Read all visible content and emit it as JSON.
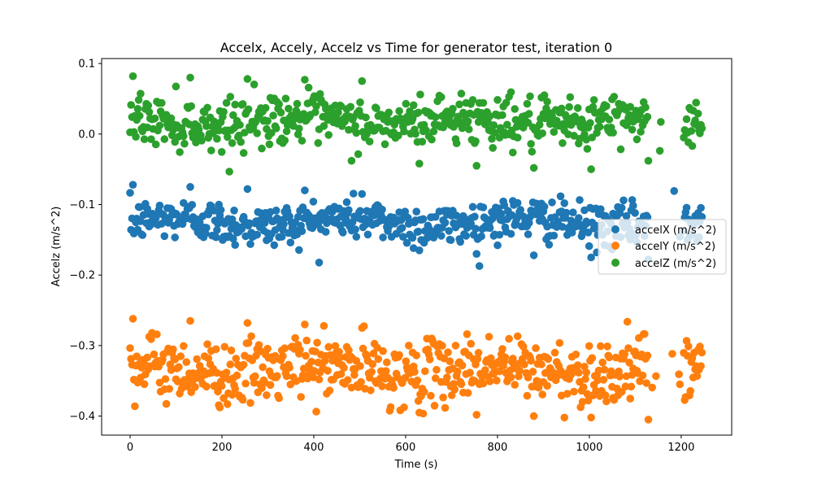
{
  "chart_data": {
    "type": "scatter",
    "title": "Accelx, Accely, Accelz vs Time for generator test, iteration 0",
    "xlabel": "Time (s)",
    "ylabel": "Accelz (m/s^2)",
    "xlim": [
      -62,
      1310
    ],
    "ylim": [
      -0.427,
      0.107
    ],
    "x_ticks": [
      0,
      200,
      400,
      600,
      800,
      1000,
      1200
    ],
    "x_tick_labels": [
      "0",
      "200",
      "400",
      "600",
      "800",
      "1000",
      "1200"
    ],
    "y_ticks": [
      0.1,
      0.0,
      -0.1,
      -0.2,
      -0.3,
      -0.4
    ],
    "y_tick_labels": [
      "0.1",
      "0.0",
      "−0.1",
      "−0.2",
      "−0.3",
      "−0.4"
    ],
    "grid": false,
    "legend_position": "center-right",
    "x_range": [
      0,
      1245
    ],
    "n_points": 600,
    "series": [
      {
        "name": "accelX (m/s^2)",
        "color": "#1f77b4",
        "center": -0.125,
        "spread": 0.03,
        "extreme_values": [
          -0.072,
          -0.075,
          -0.078,
          -0.08,
          -0.085,
          -0.165,
          -0.17,
          -0.172,
          -0.175,
          -0.178
        ]
      },
      {
        "name": "accelY (m/s^2)",
        "color": "#ff7f0e",
        "center": -0.335,
        "spread": 0.045,
        "extreme_values": [
          -0.262,
          -0.265,
          -0.268,
          -0.27,
          -0.275,
          -0.395,
          -0.398,
          -0.4,
          -0.402,
          -0.405
        ]
      },
      {
        "name": "accelZ (m/s^2)",
        "color": "#2ca02c",
        "center": 0.018,
        "spread": 0.035,
        "extreme_values": [
          0.082,
          0.08,
          0.078,
          0.077,
          0.075,
          -0.042,
          -0.045,
          -0.048,
          -0.05,
          -0.038
        ]
      }
    ]
  }
}
